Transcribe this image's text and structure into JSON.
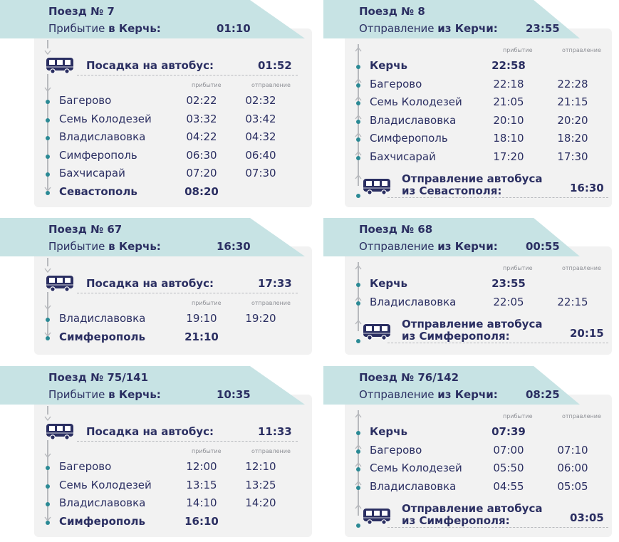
{
  "cards": [
    {
      "title": "Поезд № 7",
      "sub_prefix": "Прибытие ",
      "sub_bold": "в Керчь:",
      "time": "01:10",
      "bus_label": "Посадка на автобус:",
      "bus_time": "01:52",
      "col_arrival": "прибытие",
      "col_departure": "отправление",
      "stops": [
        {
          "name": "Багерово",
          "arr": "02:22",
          "dep": "02:32"
        },
        {
          "name": "Семь Колодезей",
          "arr": "03:32",
          "dep": "03:42"
        },
        {
          "name": "Владиславовка",
          "arr": "04:22",
          "dep": "04:32"
        },
        {
          "name": "Симферополь",
          "arr": "06:30",
          "dep": "06:40"
        },
        {
          "name": "Бахчисарай",
          "arr": "07:20",
          "dep": "07:30"
        },
        {
          "name": "Севастополь",
          "arr": "08:20",
          "dep": ""
        }
      ]
    },
    {
      "title": "Поезд № 8",
      "sub_prefix": "Отправление ",
      "sub_bold": "из Керчи:",
      "time": "23:55",
      "col_arrival": "прибытие",
      "col_departure": "отправление",
      "stops": [
        {
          "name": "Керчь",
          "arr": "22:58",
          "dep": ""
        },
        {
          "name": "Багерово",
          "arr": "22:18",
          "dep": "22:28"
        },
        {
          "name": "Семь Колодезей",
          "arr": "21:05",
          "dep": "21:15"
        },
        {
          "name": "Владиславовка",
          "arr": "20:10",
          "dep": "20:20"
        },
        {
          "name": "Симферополь",
          "arr": "18:10",
          "dep": "18:20"
        },
        {
          "name": "Бахчисарай",
          "arr": "17:20",
          "dep": "17:30"
        }
      ],
      "bus_label_1": "Отправление автобуса",
      "bus_label_2": "из Севастополя:",
      "bus_time": "16:30"
    },
    {
      "title": "Поезд № 67",
      "sub_prefix": "Прибытие ",
      "sub_bold": "в Керчь:",
      "time": "16:30",
      "bus_label": "Посадка на автобус:",
      "bus_time": "17:33",
      "col_arrival": "прибытие",
      "col_departure": "отправление",
      "stops": [
        {
          "name": "Владиславовка",
          "arr": "19:10",
          "dep": "19:20"
        },
        {
          "name": "Симферополь",
          "arr": "21:10",
          "dep": ""
        }
      ]
    },
    {
      "title": "Поезд № 68",
      "sub_prefix": "Отправление ",
      "sub_bold": "из Керчи:",
      "time": "00:55",
      "col_arrival": "прибытие",
      "col_departure": "отправление",
      "stops": [
        {
          "name": "Керчь",
          "arr": "23:55",
          "dep": ""
        },
        {
          "name": "Владиславовка",
          "arr": "22:05",
          "dep": "22:15"
        }
      ],
      "bus_label_1": "Отправление автобуса",
      "bus_label_2": "из Симферополя:",
      "bus_time": "20:15"
    },
    {
      "title": "Поезд № 75/141",
      "sub_prefix": "Прибытие ",
      "sub_bold": "в Керчь:",
      "time": "10:35",
      "bus_label": "Посадка на автобус:",
      "bus_time": "11:33",
      "col_arrival": "прибытие",
      "col_departure": "отправление",
      "stops": [
        {
          "name": "Багерово",
          "arr": "12:00",
          "dep": "12:10"
        },
        {
          "name": "Семь Колодезей",
          "arr": "13:15",
          "dep": "13:25"
        },
        {
          "name": "Владиславовка",
          "arr": "14:10",
          "dep": "14:20"
        },
        {
          "name": "Симферополь",
          "arr": "16:10",
          "dep": ""
        }
      ]
    },
    {
      "title": "Поезд № 76/142",
      "sub_prefix": "Отправление ",
      "sub_bold": "из Керчи:",
      "time": "08:25",
      "col_arrival": "прибытие",
      "col_departure": "отправление",
      "stops": [
        {
          "name": "Керчь",
          "arr": "07:39",
          "dep": ""
        },
        {
          "name": "Багерово",
          "arr": "07:00",
          "dep": "07:10"
        },
        {
          "name": "Семь Колодезей",
          "arr": "05:50",
          "dep": "06:00"
        },
        {
          "name": "Владиславовка",
          "arr": "04:55",
          "dep": "05:05"
        }
      ],
      "bus_label_1": "Отправление автобуса",
      "bus_label_2": "из Симферополя:",
      "bus_time": "03:05"
    }
  ],
  "colors": {
    "header": "#c7e3e4",
    "panel": "#f2f2f2",
    "text": "#2b2f62",
    "dot": "#2b8a95",
    "line": "#b7b9bd"
  },
  "icons": {
    "bus": "bus-icon",
    "arrow_down": "arrow-down-icon",
    "arrow_up": "arrow-up-icon"
  }
}
